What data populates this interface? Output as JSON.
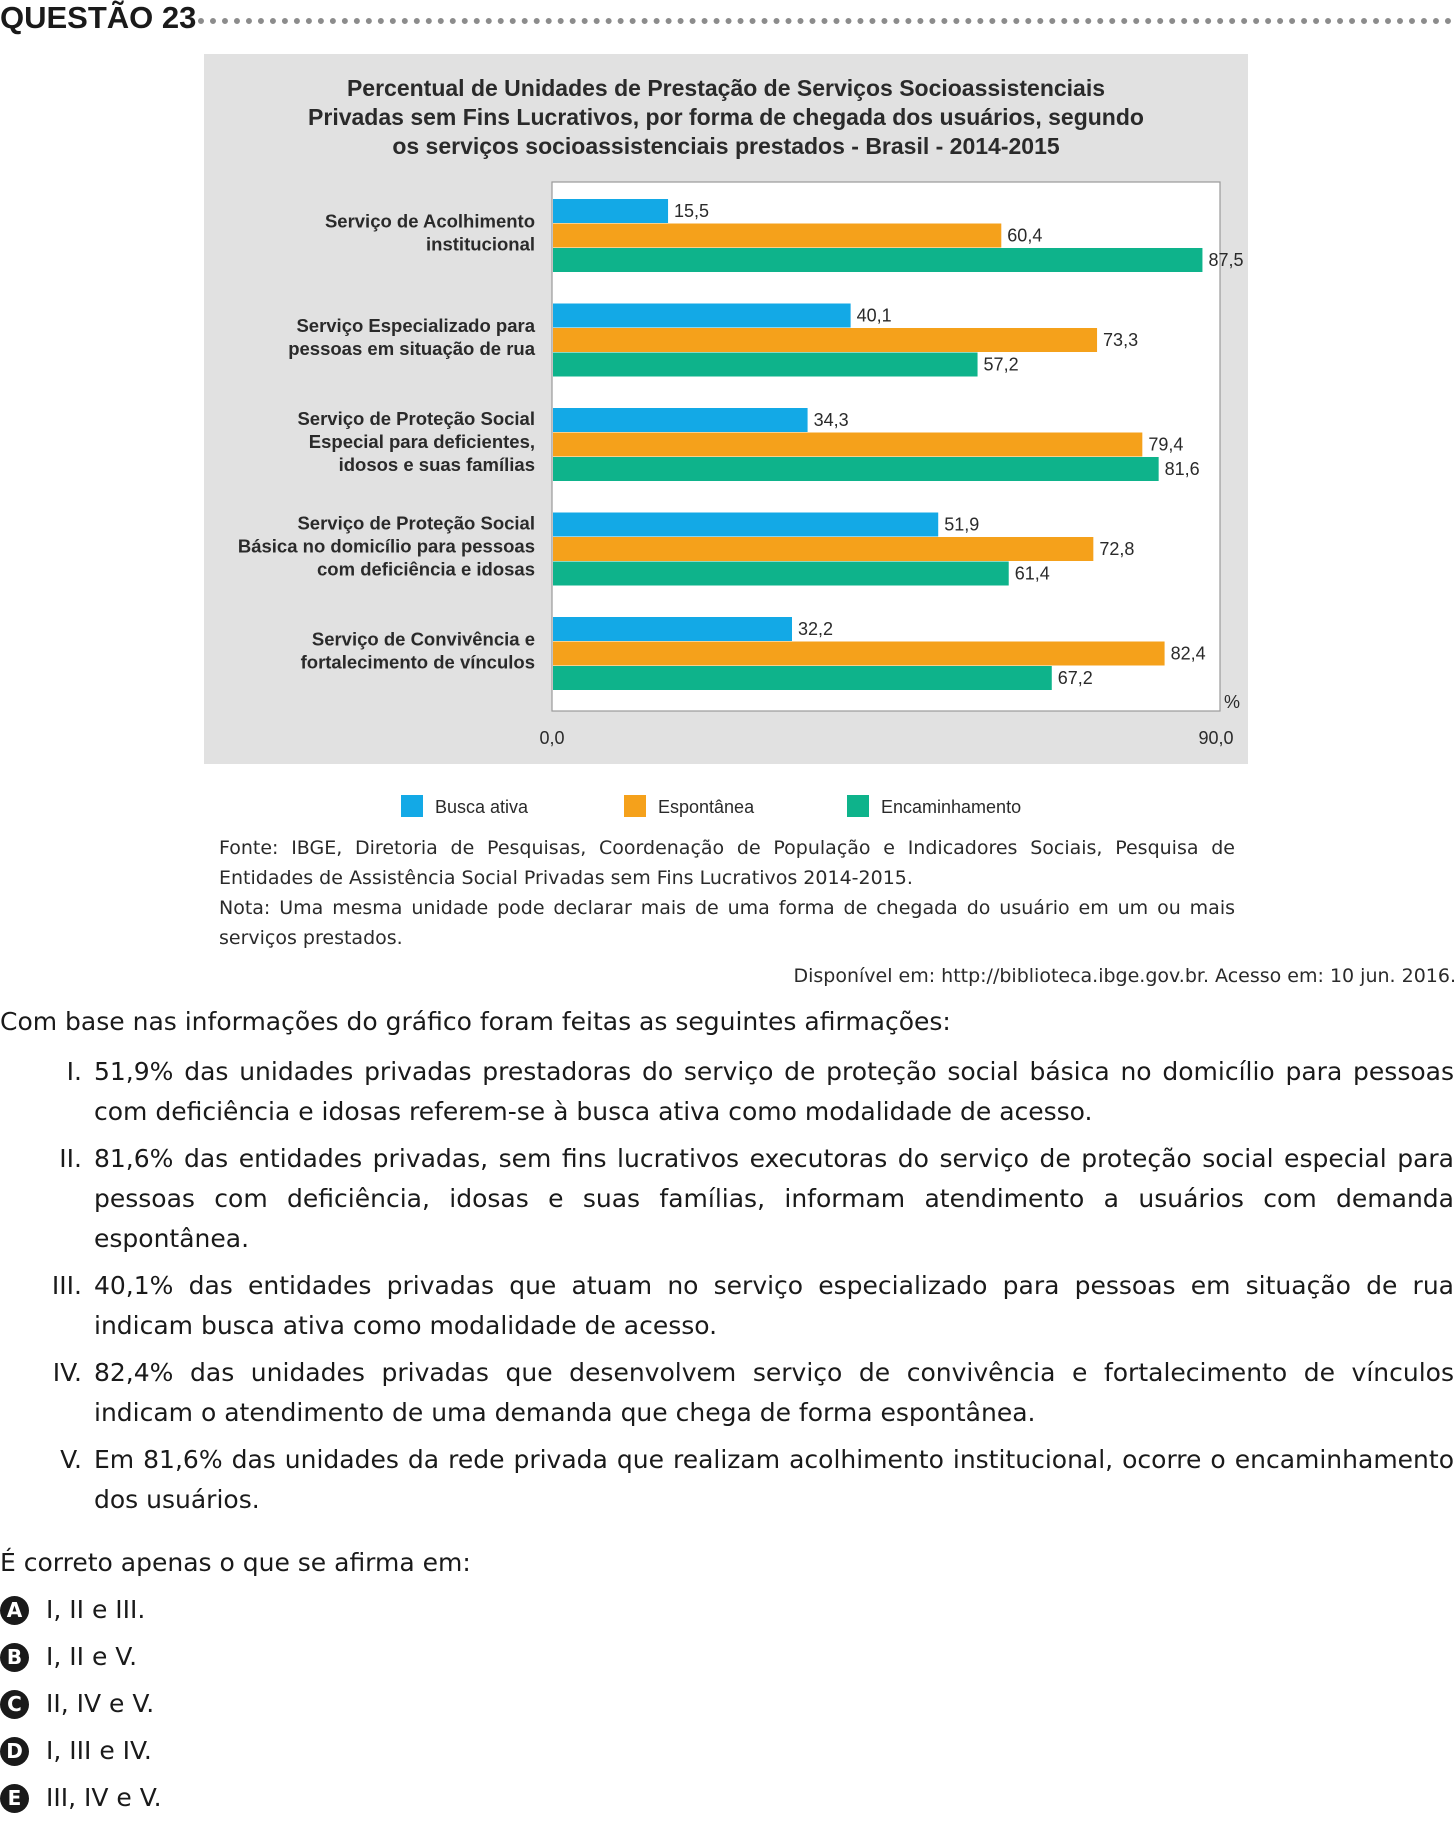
{
  "question": {
    "title": "QUESTÃO 23"
  },
  "colors": {
    "busca_ativa": "#13a9e6",
    "espontanea": "#f5a11b",
    "encaminhamento": "#0eb38b",
    "panel_bg": "#e1e1e1"
  },
  "chart_data": {
    "type": "bar",
    "orientation": "horizontal",
    "title_lines": [
      "Percentual de Unidades de Prestação de Serviços Socioassistenciais",
      "Privadas sem Fins Lucrativos, por forma de chegada dos usuários, segundo",
      "os serviços socioassistenciais prestados - Brasil - 2014-2015"
    ],
    "categories": [
      [
        "Serviço de Acolhimento",
        "institucional"
      ],
      [
        "Serviço Especializado para",
        "pessoas em situação de rua"
      ],
      [
        "Serviço de Proteção Social",
        "Especial para deficientes,",
        "idosos e suas famílias"
      ],
      [
        "Serviço de Proteção Social",
        "Básica no domicílio para pessoas",
        "com deficiência e idosas"
      ],
      [
        "Serviço de Convivência e",
        "fortalecimento de vínculos"
      ]
    ],
    "series": [
      {
        "name": "Busca ativa",
        "values": [
          15.5,
          40.1,
          34.3,
          51.9,
          32.2
        ],
        "labels": [
          "15,5",
          "40,1",
          "34,3",
          "51,9",
          "32,2"
        ]
      },
      {
        "name": "Espontânea",
        "values": [
          60.4,
          73.3,
          79.4,
          72.8,
          82.4
        ],
        "labels": [
          "60,4",
          "73,3",
          "79,4",
          "72,8",
          "82,4"
        ]
      },
      {
        "name": "Encaminhamento",
        "values": [
          87.5,
          57.2,
          81.6,
          61.4,
          67.2
        ],
        "labels": [
          "87,5",
          "57,2",
          "81,6",
          "61,4",
          "67,2"
        ]
      }
    ],
    "xlim": [
      0,
      90
    ],
    "x_tick_labels": [
      "0,0",
      "90,0"
    ],
    "unit_label": "%",
    "legend_position": "bottom"
  },
  "source": {
    "fonte": "Fonte: IBGE, Diretoria de Pesquisas, Coordenação de População e Indicadores Sociais, Pesquisa de Entidades de Assistência Social Privadas sem Fins Lucrativos 2014-2015.",
    "nota": "Nota: Uma mesma unidade pode declarar mais de uma forma de chegada do usuário em um ou mais serviços prestados.",
    "available": "Disponível em: http://biblioteca.ibge.gov.br. Acesso em: 10 jun. 2016."
  },
  "intro": "Com base nas informações do gráfico foram feitas as seguintes afirmações:",
  "statements": [
    {
      "num": "I.",
      "text": "51,9% das unidades privadas prestadoras do serviço de proteção social básica no domicílio para pessoas com deficiência e idosas referem-se à busca ativa como modalidade de acesso."
    },
    {
      "num": "II.",
      "text": "81,6% das entidades privadas, sem fins lucrativos executoras do serviço de proteção social especial para pessoas com deficiência, idosas e suas famílias, informam atendimento a usuários com demanda espontânea."
    },
    {
      "num": "III.",
      "text": "40,1% das entidades privadas que atuam no serviço especializado para pessoas em situação de rua indicam busca ativa como modalidade de acesso."
    },
    {
      "num": "IV.",
      "text": "82,4% das unidades privadas que desenvolvem serviço de convivência e fortalecimento de vínculos indicam o atendimento de uma demanda que chega de forma espontânea."
    },
    {
      "num": "V.",
      "text": "Em 81,6% das unidades da rede privada que realizam acolhimento institucional, ocorre o encaminhamento dos usuários."
    }
  ],
  "prompt": "É correto apenas o que se afirma em:",
  "options": [
    {
      "letter": "A",
      "text": "I, II e III."
    },
    {
      "letter": "B",
      "text": "I, II e V."
    },
    {
      "letter": "C",
      "text": "II, IV e V."
    },
    {
      "letter": "D",
      "text": "I, III e IV."
    },
    {
      "letter": "E",
      "text": "III, IV e V."
    }
  ]
}
